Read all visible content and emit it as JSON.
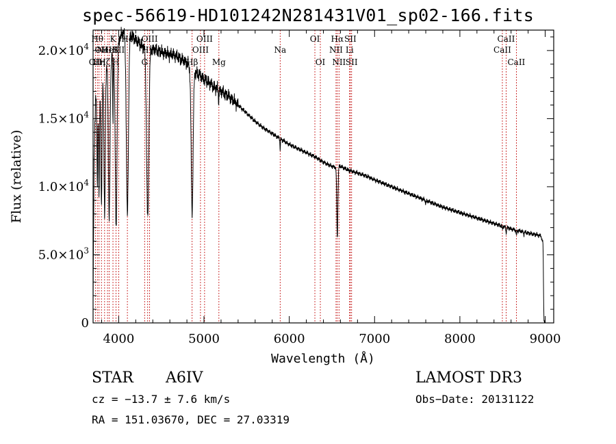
{
  "title": "spec-56619-HD101242N281431V01_sp02-166.fits",
  "info": {
    "class_label": "STAR",
    "subclass": "A6IV",
    "survey": "LAMOST DR3",
    "cz": "cz = −13.7 ± 7.6 km/s",
    "obs_date": "Obs−Date: 20131122",
    "radec": "RA = 151.03670, DEC =  27.03319"
  },
  "chart_data": {
    "type": "line",
    "title": "spec-56619-HD101242N281431V01_sp02-166.fits",
    "xlabel": "Wavelength (Å)",
    "ylabel": "Flux (relative)",
    "xlim": [
      3700,
      9100
    ],
    "ylim": [
      0,
      21500
    ],
    "xticks": [
      {
        "value": 4000,
        "label": "4000"
      },
      {
        "value": 5000,
        "label": "5000"
      },
      {
        "value": 6000,
        "label": "6000"
      },
      {
        "value": 7000,
        "label": "7000"
      },
      {
        "value": 8000,
        "label": "8000"
      },
      {
        "value": 9000,
        "label": "9000"
      }
    ],
    "yticks": [
      {
        "value": 0,
        "mant": "0",
        "exp": ""
      },
      {
        "value": 5000,
        "mant": "5.0×10",
        "exp": "3"
      },
      {
        "value": 10000,
        "mant": "1.0×10",
        "exp": "4"
      },
      {
        "value": 15000,
        "mant": "1.5×10",
        "exp": "4"
      },
      {
        "value": 20000,
        "mant": "2.0×10",
        "exp": "4"
      }
    ],
    "line_color": "#000000",
    "marker_color": "#c00000",
    "continuum": [
      [
        3700,
        2000
      ],
      [
        3712,
        12000
      ],
      [
        3730,
        16500
      ],
      [
        3760,
        17300
      ],
      [
        3800,
        17900
      ],
      [
        3850,
        18600
      ],
      [
        3900,
        19200
      ],
      [
        3950,
        20000
      ],
      [
        4000,
        20800
      ],
      [
        4050,
        21300
      ],
      [
        4100,
        21400
      ],
      [
        4150,
        21100
      ],
      [
        4200,
        20800
      ],
      [
        4250,
        20500
      ],
      [
        4300,
        20200
      ],
      [
        4350,
        20100
      ],
      [
        4400,
        20100
      ],
      [
        4450,
        20000
      ],
      [
        4500,
        19900
      ],
      [
        4550,
        19800
      ],
      [
        4600,
        19700
      ],
      [
        4650,
        19700
      ],
      [
        4700,
        19500
      ],
      [
        4750,
        19300
      ],
      [
        4800,
        19100
      ],
      [
        4850,
        18700
      ],
      [
        4900,
        18400
      ],
      [
        4950,
        18200
      ],
      [
        5000,
        17900
      ],
      [
        5050,
        17700
      ],
      [
        5100,
        17400
      ],
      [
        5200,
        17000
      ],
      [
        5300,
        16600
      ],
      [
        5400,
        16000
      ],
      [
        5500,
        15400
      ],
      [
        5600,
        14800
      ],
      [
        5700,
        14300
      ],
      [
        5800,
        13900
      ],
      [
        5900,
        13500
      ],
      [
        6000,
        13100
      ],
      [
        6100,
        12800
      ],
      [
        6200,
        12500
      ],
      [
        6300,
        12200
      ],
      [
        6400,
        11800
      ],
      [
        6500,
        11500
      ],
      [
        6550,
        11400
      ],
      [
        6600,
        11500
      ],
      [
        6700,
        11200
      ],
      [
        6800,
        11000
      ],
      [
        6900,
        10800
      ],
      [
        7000,
        10500
      ],
      [
        7200,
        10000
      ],
      [
        7400,
        9500
      ],
      [
        7600,
        9000
      ],
      [
        7800,
        8500
      ],
      [
        8000,
        8100
      ],
      [
        8200,
        7700
      ],
      [
        8400,
        7300
      ],
      [
        8600,
        6900
      ],
      [
        8800,
        6600
      ],
      [
        8950,
        6400
      ],
      [
        8975,
        5800
      ],
      [
        8985,
        200
      ],
      [
        8995,
        100
      ]
    ],
    "absorption": [
      {
        "center": 3750,
        "depth": 7000,
        "width": 7
      },
      {
        "center": 3770,
        "depth": 8000,
        "width": 8
      },
      {
        "center": 3798,
        "depth": 9500,
        "width": 9
      },
      {
        "center": 3835,
        "depth": 10500,
        "width": 11
      },
      {
        "center": 3889,
        "depth": 11500,
        "width": 13
      },
      {
        "center": 3933,
        "depth": 5500,
        "width": 4
      },
      {
        "center": 3970,
        "depth": 13500,
        "width": 15
      },
      {
        "center": 4102,
        "depth": 13500,
        "width": 17
      },
      {
        "center": 4340,
        "depth": 12500,
        "width": 18
      },
      {
        "center": 4861,
        "depth": 10500,
        "width": 16
      },
      {
        "center": 5172,
        "depth": 900,
        "width": 4
      },
      {
        "center": 5893,
        "depth": 800,
        "width": 4
      },
      {
        "center": 6563,
        "depth": 5200,
        "width": 9
      },
      {
        "center": 7600,
        "depth": 250,
        "width": 6
      },
      {
        "center": 8498,
        "depth": 300,
        "width": 4
      },
      {
        "center": 8542,
        "depth": 450,
        "width": 5
      },
      {
        "center": 8662,
        "depth": 400,
        "width": 5
      },
      {
        "center": 8750,
        "depth": 250,
        "width": 4
      }
    ],
    "lines": [
      {
        "wave": 3727,
        "label": "OII",
        "row": 2
      },
      {
        "wave": 3750,
        "label": "Hθ",
        "row": 0
      },
      {
        "wave": 3770,
        "label": "Hη",
        "row": 2
      },
      {
        "wave": 3798,
        "label": "OII",
        "row": 1
      },
      {
        "wave": 3835,
        "label": "Hζ",
        "row": 2
      },
      {
        "wave": 3869,
        "label": "NeIII",
        "row": 1
      },
      {
        "wave": 3889,
        "label": "HeI",
        "row": 1
      },
      {
        "wave": 3933,
        "label": "K",
        "row": 0
      },
      {
        "wave": 3968,
        "label": "H",
        "row": 2
      },
      {
        "wave": 4000,
        "label": "SII",
        "row": 1
      },
      {
        "wave": 4102,
        "label": "Hδ",
        "row": 0
      },
      {
        "wave": 4304,
        "label": "G",
        "row": 2
      },
      {
        "wave": 4340,
        "label": "Hγ",
        "row": 1
      },
      {
        "wave": 4363,
        "label": "OIII",
        "row": 0
      },
      {
        "wave": 4861,
        "label": "Hβ",
        "row": 2
      },
      {
        "wave": 4959,
        "label": "OIII",
        "row": 1
      },
      {
        "wave": 5007,
        "label": "OIII",
        "row": 0
      },
      {
        "wave": 5175,
        "label": "Mg",
        "row": 2
      },
      {
        "wave": 5893,
        "label": "Na",
        "row": 1
      },
      {
        "wave": 6300,
        "label": "OI",
        "row": 0
      },
      {
        "wave": 6364,
        "label": "OI",
        "row": 2
      },
      {
        "wave": 6548,
        "label": "NII",
        "row": 1
      },
      {
        "wave": 6563,
        "label": "Hα",
        "row": 0
      },
      {
        "wave": 6583,
        "label": "NII",
        "row": 2
      },
      {
        "wave": 6716,
        "label": "SII",
        "row": 0
      },
      {
        "wave": 6707,
        "label": "Li",
        "row": 1
      },
      {
        "wave": 6731,
        "label": "SII",
        "row": 2
      },
      {
        "wave": 8498,
        "label": "CaII",
        "row": 1
      },
      {
        "wave": 8542,
        "label": "CaII",
        "row": 0
      },
      {
        "wave": 8662,
        "label": "CaII",
        "row": 2
      }
    ]
  }
}
